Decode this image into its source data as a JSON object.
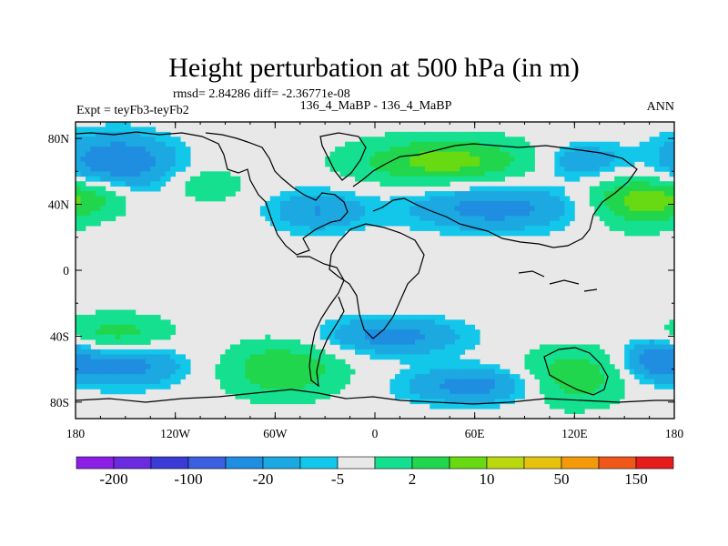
{
  "chart_data": {
    "type": "heatmap",
    "title": "Height perturbation at 500 hPa (in m)",
    "subtitle_stats": "rmsd= 2.84286 diff= -2.36771e-08",
    "experiment_label": "Expt = teyFb3-teyFb2",
    "center_label": "136_4_MaBP - 136_4_MaBP",
    "season_label": "ANN",
    "x_axis": {
      "range": [
        -180,
        180
      ],
      "ticks": [
        -180,
        -120,
        -60,
        0,
        60,
        120,
        180
      ],
      "tick_labels": [
        "180",
        "120W",
        "60W",
        "0",
        "60E",
        "120E",
        "180"
      ]
    },
    "y_axis": {
      "range": [
        -90,
        90
      ],
      "ticks": [
        80,
        40,
        0,
        -40,
        -80
      ],
      "tick_labels": [
        "80N",
        "40N",
        "0",
        "40S",
        "80S"
      ]
    },
    "colorbar": {
      "colors": [
        "#8c1fe6",
        "#6b2ce0",
        "#3a3ad6",
        "#3b5fe0",
        "#1f8de0",
        "#1ca8e0",
        "#13c7ea",
        "#e8e8e8",
        "#14e08f",
        "#21d64c",
        "#67da12",
        "#bbd80f",
        "#e6c20d",
        "#f39a0a",
        "#f0581b",
        "#e61c1c"
      ],
      "labels": [
        "-200",
        "-100",
        "-20",
        "-5",
        "2",
        "10",
        "50",
        "150"
      ]
    },
    "anomalies": [
      {
        "lon": -155,
        "lat": 66,
        "rlon": 25,
        "rlat": 12,
        "value": -12
      },
      {
        "lon": -168,
        "lat": 44,
        "rlon": 16,
        "rlat": 8,
        "value": 6
      },
      {
        "lon": -100,
        "lat": 52,
        "rlon": 13,
        "rlat": 7,
        "value": 6
      },
      {
        "lon": -35,
        "lat": 36,
        "rlon": 20,
        "rlat": 9,
        "value": -8
      },
      {
        "lon": 42,
        "lat": 66,
        "rlon": 38,
        "rlat": 10,
        "value": 12
      },
      {
        "lon": 72,
        "lat": 38,
        "rlon": 38,
        "rlat": 10,
        "value": -10
      },
      {
        "lon": 125,
        "lat": 66,
        "rlon": 18,
        "rlat": 8,
        "value": -8
      },
      {
        "lon": 158,
        "lat": 42,
        "rlon": 22,
        "rlat": 11,
        "value": 12
      },
      {
        "lon": -155,
        "lat": -38,
        "rlon": 22,
        "rlat": 8,
        "value": 8
      },
      {
        "lon": -150,
        "lat": -58,
        "rlon": 25,
        "rlat": 9,
        "value": -10
      },
      {
        "lon": -55,
        "lat": -60,
        "rlon": 25,
        "rlat": 12,
        "value": 10
      },
      {
        "lon": 10,
        "lat": -40,
        "rlon": 30,
        "rlat": 8,
        "value": -10
      },
      {
        "lon": 60,
        "lat": -70,
        "rlon": 30,
        "rlat": 8,
        "value": -10
      },
      {
        "lon": 118,
        "lat": -65,
        "rlon": 22,
        "rlat": 12,
        "value": 10
      },
      {
        "lon": 168,
        "lat": -54,
        "rlon": 14,
        "rlat": 9,
        "value": -10
      }
    ]
  }
}
